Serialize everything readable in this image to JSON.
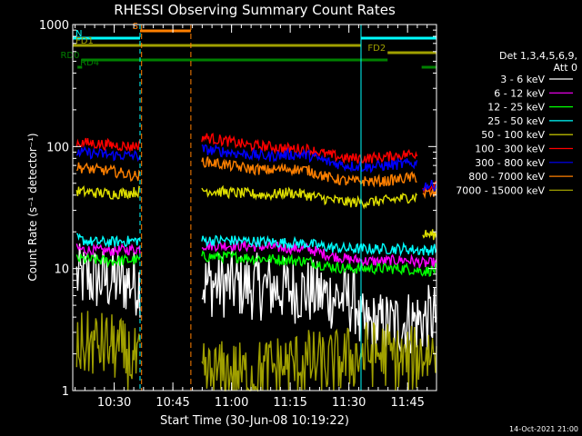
{
  "chart_data": {
    "type": "line",
    "title": "RHESSI Observing Summary Count Rates",
    "xlabel": "Start Time (30-Jun-08 10:19:22)",
    "ylabel": "Count Rate (s⁻¹ detector⁻¹)",
    "yscale": "log",
    "ylim": [
      1,
      1000
    ],
    "xlim_minutes_from_start": [
      0,
      93
    ],
    "y_tick_labels": [
      "1",
      "10",
      "100",
      "1000"
    ],
    "x_ticks": [
      {
        "label": "10:30",
        "minute": 10.6
      },
      {
        "label": "10:45",
        "minute": 25.6
      },
      {
        "label": "11:00",
        "minute": 40.6
      },
      {
        "label": "11:15",
        "minute": 55.6
      },
      {
        "label": "11:30",
        "minute": 70.6
      },
      {
        "label": "11:45",
        "minute": 85.6
      }
    ],
    "detector_info": [
      "Det 1,3,4,5,6,9,",
      "Att 0"
    ],
    "timestamp": "14-Oct-2021 21:00",
    "color_night": "#00ffff",
    "color_saa": "#ff8000",
    "series": [
      {
        "name": "3 - 6 keV",
        "color": "#ffffff",
        "segments": [
          {
            "x": [
              1,
              5,
              10,
              15,
              17.2
            ],
            "y": [
              8.5,
              8.2,
              8.0,
              7.8,
              7.5
            ]
          },
          {
            "x": [
              33,
              40,
              50,
              60,
              65,
              70,
              73
            ],
            "y": [
              7.5,
              7.4,
              7.0,
              6.5,
              6.0,
              5.6,
              5.2
            ]
          },
          {
            "x": [
              73.1,
              78,
              85,
              90,
              93
            ],
            "y": [
              3.3,
              3.4,
              3.6,
              3.8,
              4.1
            ]
          }
        ]
      },
      {
        "name": "6 - 12 keV",
        "color": "#ff00ff",
        "segments": [
          {
            "x": [
              1,
              5,
              10,
              17.2
            ],
            "y": [
              14.5,
              14.0,
              14.0,
              14.5
            ]
          },
          {
            "x": [
              33,
              40,
              50,
              60,
              65,
              70,
              75,
              80,
              85,
              90,
              93
            ],
            "y": [
              15.5,
              15.5,
              15.0,
              14.5,
              13.0,
              12.0,
              11.5,
              11.5,
              11.8,
              11.0,
              11.2
            ]
          }
        ]
      },
      {
        "name": "12 - 25 keV",
        "color": "#00ff00",
        "segments": [
          {
            "x": [
              1,
              5,
              10,
              17.2
            ],
            "y": [
              12.0,
              11.8,
              11.5,
              11.8
            ]
          },
          {
            "x": [
              33,
              40,
              50,
              60,
              65,
              70,
              75,
              80,
              85,
              90,
              93
            ],
            "y": [
              12.5,
              12.5,
              12.0,
              11.5,
              10.5,
              10.0,
              10.0,
              10.0,
              10.0,
              9.5,
              9.8
            ]
          }
        ]
      },
      {
        "name": "25 - 50 keV",
        "color": "#00ffff",
        "segments": [
          {
            "x": [
              1,
              5,
              10,
              17.2
            ],
            "y": [
              17.5,
              16.5,
              16.5,
              17.0
            ]
          },
          {
            "x": [
              33,
              40,
              50,
              60,
              65,
              70,
              75,
              80,
              85,
              90,
              93
            ],
            "y": [
              17.0,
              17.0,
              16.5,
              16.0,
              15.0,
              14.5,
              14.5,
              14.5,
              14.5,
              14.0,
              14.5
            ]
          }
        ]
      },
      {
        "name": "50 - 100 keV",
        "color": "#e0e000",
        "segments": [
          {
            "x": [
              1,
              5,
              10,
              15,
              17.2
            ],
            "y": [
              43,
              42,
              41,
              42,
              43
            ]
          },
          {
            "x": [
              33,
              40,
              50,
              55,
              60,
              65,
              70,
              75,
              80,
              85,
              88
            ],
            "y": [
              44,
              42,
              40,
              42,
              40,
              37,
              35,
              35,
              36,
              38,
              39
            ]
          },
          {
            "x": [
              89.5,
              93
            ],
            "y": [
              19,
              19
            ]
          }
        ]
      },
      {
        "name": "100 - 300 keV",
        "color": "#ff0000",
        "segments": [
          {
            "x": [
              1,
              5,
              10,
              15,
              17.2
            ],
            "y": [
              108,
              106,
              103,
              100,
              104
            ]
          },
          {
            "x": [
              33,
              40,
              45,
              50,
              55,
              60,
              65,
              70,
              75,
              80,
              85,
              88
            ],
            "y": [
              120,
              110,
              102,
              100,
              96,
              95,
              86,
              80,
              80,
              82,
              86,
              88
            ]
          },
          {
            "x": [
              89.5,
              93
            ],
            "y": [
              47,
              47
            ]
          }
        ]
      },
      {
        "name": "300 - 800 keV",
        "color": "#0000ff",
        "segments": [
          {
            "x": [
              1,
              5,
              10,
              17.2
            ],
            "y": [
              90,
              88,
              85,
              84
            ]
          },
          {
            "x": [
              33,
              40,
              45,
              50,
              55,
              60,
              65,
              70,
              75,
              80,
              85,
              88
            ],
            "y": [
              95,
              90,
              86,
              83,
              86,
              85,
              75,
              70,
              68,
              70,
              72,
              73
            ]
          },
          {
            "x": [
              89.5,
              93
            ],
            "y": [
              48,
              48
            ]
          }
        ]
      },
      {
        "name": "800 - 7000 keV",
        "color": "#ff8000",
        "segments": [
          {
            "x": [
              1,
              5,
              10,
              15,
              17.2
            ],
            "y": [
              68,
              65,
              63,
              58,
              57
            ]
          },
          {
            "x": [
              33,
              40,
              45,
              50,
              55,
              60,
              65,
              70,
              75,
              80,
              85,
              88
            ],
            "y": [
              76,
              70,
              66,
              64,
              66,
              64,
              56,
              52,
              52,
              52,
              55,
              56
            ]
          },
          {
            "x": [
              89.5,
              93
            ],
            "y": [
              41,
              41
            ]
          }
        ]
      },
      {
        "name": "7000 - 15000 keV",
        "color": "#a0a000",
        "segments": [
          {
            "x": [
              1,
              5,
              10,
              15,
              17.2
            ],
            "y": [
              2.3,
              2.4,
              2.3,
              1.8,
              1.6
            ]
          },
          {
            "x": [
              33,
              40,
              45,
              50,
              60,
              65,
              70,
              75,
              80,
              85,
              90,
              93
            ],
            "y": [
              1.3,
              1.4,
              1.3,
              1.5,
              1.7,
              1.6,
              1.8,
              2.0,
              2.0,
              1.7,
              2.0,
              2.1
            ]
          }
        ]
      }
    ],
    "flag_bars": [
      {
        "label": "S",
        "color": "#ff8000",
        "label_side": "left",
        "level": 1,
        "ranges": [
          [
            17.2,
            30.2
          ]
        ]
      },
      {
        "label": "N",
        "color": "#00ffff",
        "label_side": "right",
        "level": 2,
        "ranges": [
          [
            0,
            17.2
          ],
          [
            73.7,
            93
          ]
        ]
      },
      {
        "label": "FD1",
        "color": "#a0a000",
        "label_side": "right",
        "level": 3,
        "ranges": [
          [
            0,
            73.7
          ]
        ]
      },
      {
        "label": "FD2",
        "color": "#a0a000",
        "label_side": "left",
        "level": 4,
        "ranges": [
          [
            80.5,
            93
          ]
        ]
      },
      {
        "label": "RD0",
        "color": "#008000",
        "label_side": "left",
        "level": 5,
        "ranges": [
          [
            2.2,
            80.5
          ]
        ]
      },
      {
        "label": "RD4",
        "color": "#008000",
        "label_side": "right",
        "level": 6,
        "ranges": [
          [
            1.2,
            2.4
          ],
          [
            89.2,
            93
          ]
        ]
      }
    ],
    "night_lines": [
      0,
      17.2,
      73.7,
      93
    ],
    "saa_lines": [
      17.6,
      30.2
    ]
  }
}
